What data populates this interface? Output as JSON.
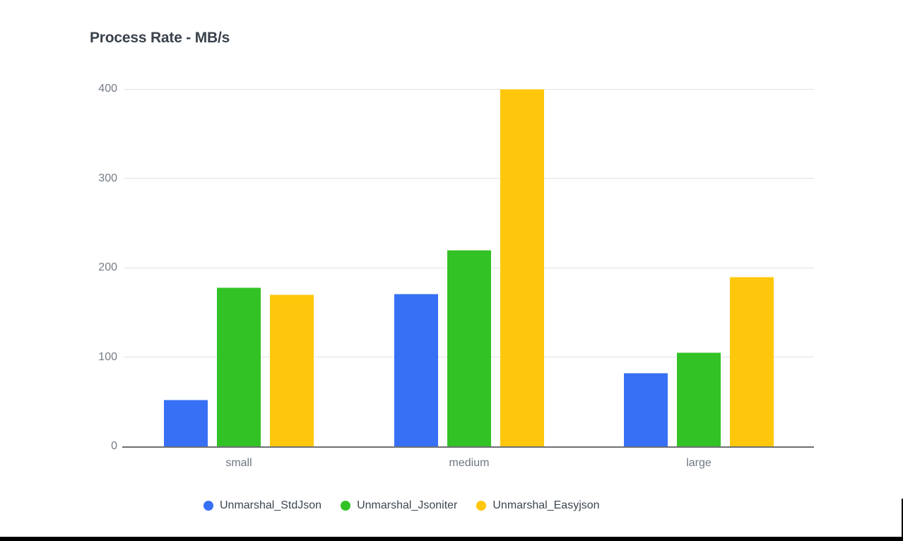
{
  "page": {
    "background_color": "#ffffff",
    "bottom_bar_color": "#000000"
  },
  "colors": {
    "grid": "#e3e3e3",
    "axis_line": "#6e7073",
    "tick_text": "#757c85",
    "category_text": "#6f7680",
    "legend_text": "#3d4650",
    "title_text": "#3a424c",
    "series_blue": "#3770f5",
    "series_green": "#33c226",
    "series_yellow": "#fec70c"
  },
  "chart_data": {
    "type": "bar",
    "title": "Process Rate - MB/s",
    "xlabel": "",
    "ylabel": "",
    "categories": [
      "small",
      "medium",
      "large"
    ],
    "series": [
      {
        "name": "Unmarshal_StdJson",
        "color": "#3770f5",
        "values": [
          52,
          171,
          82
        ]
      },
      {
        "name": "Unmarshal_Jsoniter",
        "color": "#33c226",
        "values": [
          178,
          220,
          105
        ]
      },
      {
        "name": "Unmarshal_Easyjson",
        "color": "#fec70c",
        "values": [
          170,
          400,
          190
        ]
      }
    ],
    "ylim": [
      0,
      400
    ],
    "yticks": [
      0,
      100,
      200,
      300,
      400
    ],
    "grid": true,
    "legend_position": "bottom"
  }
}
